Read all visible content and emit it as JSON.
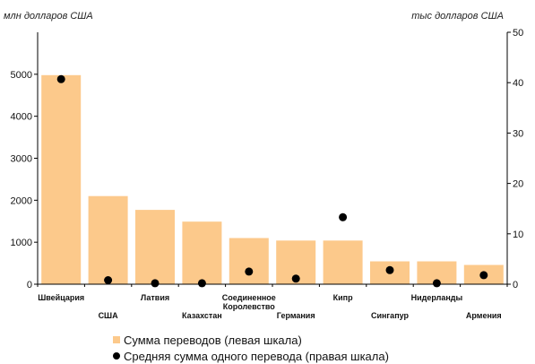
{
  "chart_data": {
    "type": "bar",
    "left_axis_unit": "млн долларов США",
    "right_axis_unit": "тыс долларов США",
    "categories": [
      "Швейцария",
      "США",
      "Латвия",
      "Казахстан",
      "Соединенное Королевство",
      "Германия",
      "Кипр",
      "Сингапур",
      "Нидерланды",
      "Армения"
    ],
    "category_label_lines": [
      [
        "Швейцария"
      ],
      [
        "США"
      ],
      [
        "Латвия"
      ],
      [
        "Казахстан"
      ],
      [
        "Соединенное",
        "Королевство"
      ],
      [
        "Германия"
      ],
      [
        "Кипр"
      ],
      [
        "Сингапур"
      ],
      [
        "Нидерланды"
      ],
      [
        "Армения"
      ]
    ],
    "series": [
      {
        "name": "Сумма переводов (левая шкала)",
        "kind": "bar",
        "axis": "left",
        "values": [
          4980,
          2100,
          1770,
          1490,
          1100,
          1040,
          1040,
          545,
          545,
          460
        ]
      },
      {
        "name": "Средняя сумма одного перевода (правая шкала)",
        "kind": "marker",
        "axis": "right",
        "values": [
          40.7,
          0.8,
          0.2,
          0.2,
          2.5,
          1.1,
          13.3,
          2.8,
          0.2,
          1.8
        ]
      }
    ],
    "left_ylim": [
      0,
      6000
    ],
    "left_ticks": [
      "0",
      "1000",
      "2000",
      "3000",
      "4000",
      "5000"
    ],
    "right_ylim": [
      0,
      50
    ],
    "right_ticks": [
      "0",
      "10",
      "20",
      "30",
      "40",
      "50"
    ],
    "grid": false,
    "legend_position": "bottom-left",
    "colors": {
      "bar": "#fcc98b",
      "marker": "#000000"
    }
  }
}
